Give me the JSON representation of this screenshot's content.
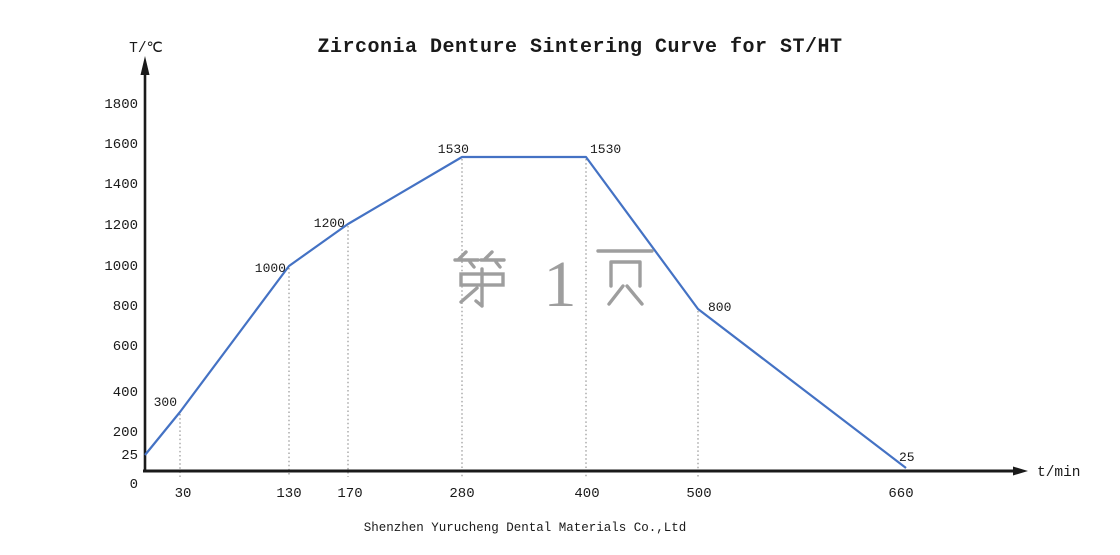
{
  "page": {
    "watermark": {
      "text": "第 1 页",
      "number": "1"
    },
    "footer": "Shenzhen Yurucheng Dental Materials Co.,Ltd"
  },
  "chart_data": {
    "type": "line",
    "title": "Zirconia Denture Sintering Curve for ST/HT",
    "xlabel": "t/min",
    "ylabel": "T/℃",
    "x": [
      0,
      30,
      130,
      170,
      280,
      400,
      500,
      660
    ],
    "y": [
      25,
      300,
      1000,
      1200,
      1530,
      1530,
      800,
      25
    ],
    "point_labels": [
      "",
      "300",
      "1000",
      "1200",
      "1530",
      "1530",
      "800",
      "25"
    ],
    "x_ticks": [
      "30",
      "130",
      "170",
      "280",
      "400",
      "500",
      "660"
    ],
    "y_ticks": [
      "1800",
      "1600",
      "1400",
      "1200",
      "1000",
      "800",
      "600",
      "400",
      "200",
      "25",
      "0"
    ],
    "xlim": [
      0,
      720
    ],
    "ylim": [
      0,
      1900
    ],
    "grid": false,
    "legend": null,
    "line_color": "#4472c4",
    "axis_color": "#1a1a1a",
    "dropline_color": "#808080",
    "watermark_color": "#9e9e9e"
  }
}
